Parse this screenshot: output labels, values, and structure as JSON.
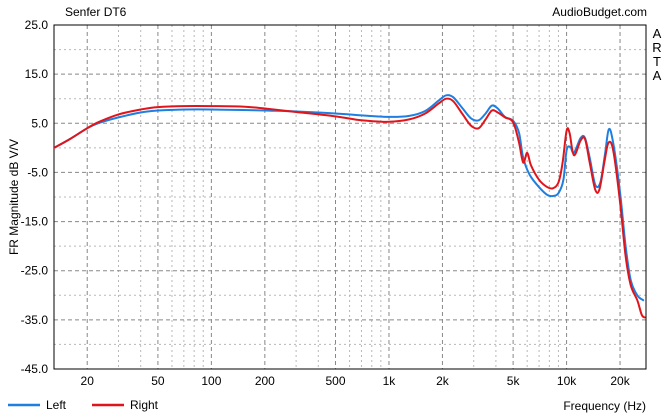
{
  "header": {
    "title_left": "Senfer DT6",
    "title_right": "AudioBudget.com"
  },
  "chart_data": {
    "type": "line",
    "xscale": "log",
    "xlim": [
      13,
      28000
    ],
    "ylim": [
      -45,
      25
    ],
    "grid": true,
    "ylabel": "FR Magnitude dB V/V",
    "xlabel": "Frequency (Hz)",
    "side_text": [
      "A",
      "R",
      "T",
      "A"
    ],
    "x_tick_values": [
      20,
      50,
      100,
      200,
      500,
      1000,
      2000,
      5000,
      10000,
      20000
    ],
    "x_tick_labels": [
      "20",
      "50",
      "100",
      "200",
      "500",
      "1k",
      "2k",
      "5k",
      "10k",
      "20k"
    ],
    "y_ticks": [
      25,
      15,
      5,
      -5,
      -15,
      -25,
      -35,
      -45
    ],
    "y_tick_labels": [
      "25.0",
      "15.0",
      "5.0",
      "-5.0",
      "-15.0",
      "-25.0",
      "-35.0",
      "-45.0"
    ],
    "legend_position": "bottom-left",
    "series": [
      {
        "name": "Left",
        "color": "#1f7fe0",
        "points": [
          [
            13,
            0
          ],
          [
            16,
            1.8
          ],
          [
            20,
            4.0
          ],
          [
            23,
            5.0
          ],
          [
            30,
            6.2
          ],
          [
            40,
            7.2
          ],
          [
            50,
            7.6
          ],
          [
            70,
            7.8
          ],
          [
            100,
            7.8
          ],
          [
            150,
            7.7
          ],
          [
            200,
            7.6
          ],
          [
            300,
            7.4
          ],
          [
            500,
            7.0
          ],
          [
            700,
            6.6
          ],
          [
            1000,
            6.3
          ],
          [
            1300,
            6.5
          ],
          [
            1600,
            7.5
          ],
          [
            1900,
            9.6
          ],
          [
            2100,
            10.7
          ],
          [
            2300,
            10.3
          ],
          [
            2600,
            8.0
          ],
          [
            2900,
            6.0
          ],
          [
            3200,
            5.6
          ],
          [
            3500,
            7.0
          ],
          [
            3800,
            8.6
          ],
          [
            4100,
            8.0
          ],
          [
            4500,
            6.3
          ],
          [
            5000,
            5.5
          ],
          [
            5400,
            3.0
          ],
          [
            5700,
            -2.0
          ],
          [
            6200,
            -5.5
          ],
          [
            7000,
            -8.0
          ],
          [
            7800,
            -9.6
          ],
          [
            8400,
            -9.8
          ],
          [
            9000,
            -9.2
          ],
          [
            9600,
            -6.5
          ],
          [
            10000,
            -0.5
          ],
          [
            10500,
            0.2
          ],
          [
            11000,
            -1.0
          ],
          [
            12000,
            2.0
          ],
          [
            12700,
            2.0
          ],
          [
            13500,
            -2.0
          ],
          [
            14500,
            -7.5
          ],
          [
            15500,
            -7.0
          ],
          [
            16500,
            -1.0
          ],
          [
            17300,
            3.8
          ],
          [
            18300,
            1.0
          ],
          [
            20000,
            -9.0
          ],
          [
            21500,
            -20.0
          ],
          [
            23000,
            -27.0
          ],
          [
            25000,
            -30.0
          ],
          [
            27000,
            -31.0
          ]
        ]
      },
      {
        "name": "Right",
        "color": "#e0151c",
        "points": [
          [
            13,
            0
          ],
          [
            16,
            1.8
          ],
          [
            20,
            4.0
          ],
          [
            23,
            5.2
          ],
          [
            30,
            6.8
          ],
          [
            40,
            7.8
          ],
          [
            50,
            8.3
          ],
          [
            70,
            8.5
          ],
          [
            100,
            8.5
          ],
          [
            150,
            8.4
          ],
          [
            200,
            8.0
          ],
          [
            300,
            7.3
          ],
          [
            500,
            6.4
          ],
          [
            700,
            5.6
          ],
          [
            1000,
            5.3
          ],
          [
            1300,
            5.8
          ],
          [
            1600,
            7.0
          ],
          [
            1900,
            9.0
          ],
          [
            2100,
            10.0
          ],
          [
            2300,
            9.5
          ],
          [
            2600,
            6.8
          ],
          [
            2900,
            4.5
          ],
          [
            3200,
            4.0
          ],
          [
            3500,
            5.8
          ],
          [
            3800,
            7.6
          ],
          [
            4100,
            7.2
          ],
          [
            4500,
            6.2
          ],
          [
            5000,
            5.2
          ],
          [
            5400,
            1.0
          ],
          [
            5700,
            -3.0
          ],
          [
            6000,
            -1.0
          ],
          [
            6300,
            -3.5
          ],
          [
            7000,
            -6.5
          ],
          [
            7800,
            -8.0
          ],
          [
            8400,
            -8.2
          ],
          [
            9000,
            -7.0
          ],
          [
            9500,
            -3.0
          ],
          [
            10000,
            3.5
          ],
          [
            10400,
            3.0
          ],
          [
            11000,
            -1.5
          ],
          [
            12000,
            1.5
          ],
          [
            12700,
            1.8
          ],
          [
            13500,
            -3.0
          ],
          [
            14500,
            -8.5
          ],
          [
            15300,
            -8.5
          ],
          [
            16300,
            -3.0
          ],
          [
            17200,
            1.0
          ],
          [
            18300,
            -0.5
          ],
          [
            20000,
            -11.0
          ],
          [
            21500,
            -22.0
          ],
          [
            23000,
            -28.0
          ],
          [
            25000,
            -31.0
          ],
          [
            26500,
            -34.0
          ],
          [
            27500,
            -34.5
          ]
        ]
      }
    ]
  }
}
